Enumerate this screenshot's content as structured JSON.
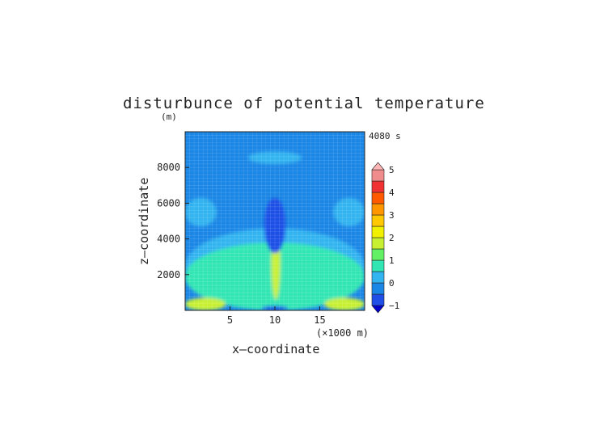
{
  "chart_data": {
    "type": "heatmap",
    "title": "disturbunce of potential temperature",
    "units": "(m)",
    "time_label": "4080 s",
    "xlabel": "x—coordinate",
    "ylabel": "z—coordinate",
    "x_unit_label": "(×1000 m)",
    "xlim": [
      0,
      20
    ],
    "ylim": [
      0,
      10000
    ],
    "x_ticks": [
      {
        "v": 5,
        "label": "5"
      },
      {
        "v": 10,
        "label": "10"
      },
      {
        "v": 15,
        "label": "15"
      }
    ],
    "y_ticks": [
      {
        "v": 2000,
        "label": "2000"
      },
      {
        "v": 4000,
        "label": "4000"
      },
      {
        "v": 6000,
        "label": "6000"
      },
      {
        "v": 8000,
        "label": "8000"
      }
    ],
    "colorbar": {
      "levels": [
        -1,
        -0.5,
        0,
        0.5,
        1,
        1.5,
        2,
        2.5,
        3,
        3.5,
        4,
        4.5,
        5
      ],
      "colors": [
        "#0000cc",
        "#1f4fe6",
        "#1a86e6",
        "#32b4f0",
        "#32e6b4",
        "#64f064",
        "#c8f032",
        "#f0f000",
        "#ffc800",
        "#ff9600",
        "#ff5a00",
        "#f03232",
        "#f08c8c",
        "#ffb4b4"
      ],
      "tick_labels": [
        {
          "v": -1,
          "label": "−1"
        },
        {
          "v": 0,
          "label": "0"
        },
        {
          "v": 1,
          "label": "1"
        },
        {
          "v": 2,
          "label": "2"
        },
        {
          "v": 3,
          "label": "3"
        },
        {
          "v": 4,
          "label": "4"
        },
        {
          "v": 5,
          "label": "5"
        }
      ]
    },
    "regions": [
      {
        "name": "background",
        "value": -0.25
      },
      {
        "name": "upper-band",
        "value": 0.25,
        "x": [
          7,
          13
        ],
        "z": [
          8200,
          8900
        ]
      },
      {
        "name": "left-mid-patch",
        "value": 0.25,
        "x": [
          0,
          3.5
        ],
        "z": [
          4700,
          6300
        ]
      },
      {
        "name": "right-mid-patch",
        "value": 0.25,
        "x": [
          16.5,
          20
        ],
        "z": [
          4700,
          6300
        ]
      },
      {
        "name": "lower-wide-layer",
        "value": 0.25,
        "x": [
          0,
          20
        ],
        "z": [
          300,
          4600
        ]
      },
      {
        "name": "lower-cyan-layer",
        "value": 0.75,
        "x": [
          0,
          20
        ],
        "z": [
          0,
          3800
        ]
      },
      {
        "name": "central-updraft-core",
        "value": 1.75,
        "x": [
          9.6,
          10.6
        ],
        "z": [
          600,
          4900
        ]
      },
      {
        "name": "surface-warm-left",
        "value": 1.75,
        "x": [
          0,
          4.5
        ],
        "z": [
          0,
          700
        ]
      },
      {
        "name": "surface-warm-right",
        "value": 1.75,
        "x": [
          15.5,
          20
        ],
        "z": [
          0,
          700
        ]
      },
      {
        "name": "cold-plume-top",
        "value": -0.75,
        "x": [
          8.8,
          11.2
        ],
        "z": [
          3200,
          6300
        ]
      },
      {
        "name": "surface-cold-center",
        "value": -0.75,
        "x": [
          8.5,
          11.5
        ],
        "z": [
          0,
          250
        ]
      }
    ]
  }
}
